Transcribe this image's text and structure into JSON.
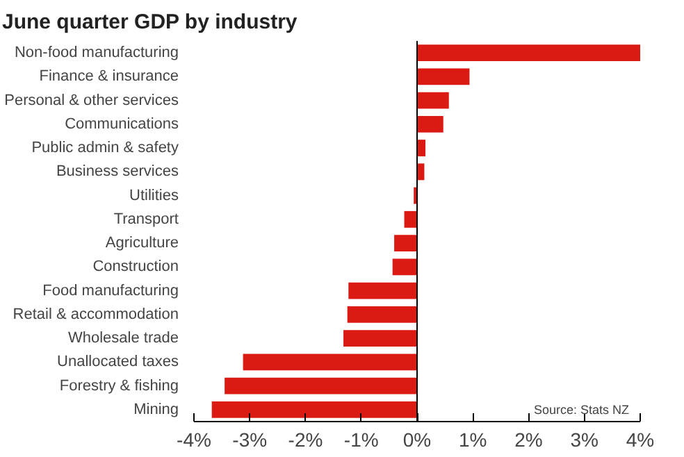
{
  "chart_data": {
    "type": "bar",
    "orientation": "horizontal",
    "title": "June quarter GDP by industry",
    "categories": [
      "Non-food manufacturing",
      "Finance & insurance",
      "Personal & other services",
      "Communications",
      "Public admin & safety",
      "Business services",
      "Utilities",
      "Transport",
      "Agriculture",
      "Construction",
      "Food manufacturing",
      "Retail & accommodation",
      "Wholesale trade",
      "Unallocated taxes",
      "Forestry & fishing",
      "Mining"
    ],
    "values": [
      4.0,
      0.94,
      0.57,
      0.47,
      0.15,
      0.13,
      -0.06,
      -0.23,
      -0.41,
      -0.44,
      -1.23,
      -1.25,
      -1.32,
      -3.12,
      -3.45,
      -3.68
    ],
    "color": "#dc1a14",
    "xlim": [
      -4,
      4
    ],
    "xticks": [
      {
        "value": -4,
        "label": "-4%"
      },
      {
        "value": -3,
        "label": "-3%"
      },
      {
        "value": -2,
        "label": "-2%"
      },
      {
        "value": -1,
        "label": "-1%"
      },
      {
        "value": 0,
        "label": "0%"
      },
      {
        "value": 1,
        "label": "1%"
      },
      {
        "value": 2,
        "label": "2%"
      },
      {
        "value": 3,
        "label": "3%"
      },
      {
        "value": 4,
        "label": "4%"
      }
    ],
    "annotations": [
      "Source: Stats NZ"
    ]
  }
}
